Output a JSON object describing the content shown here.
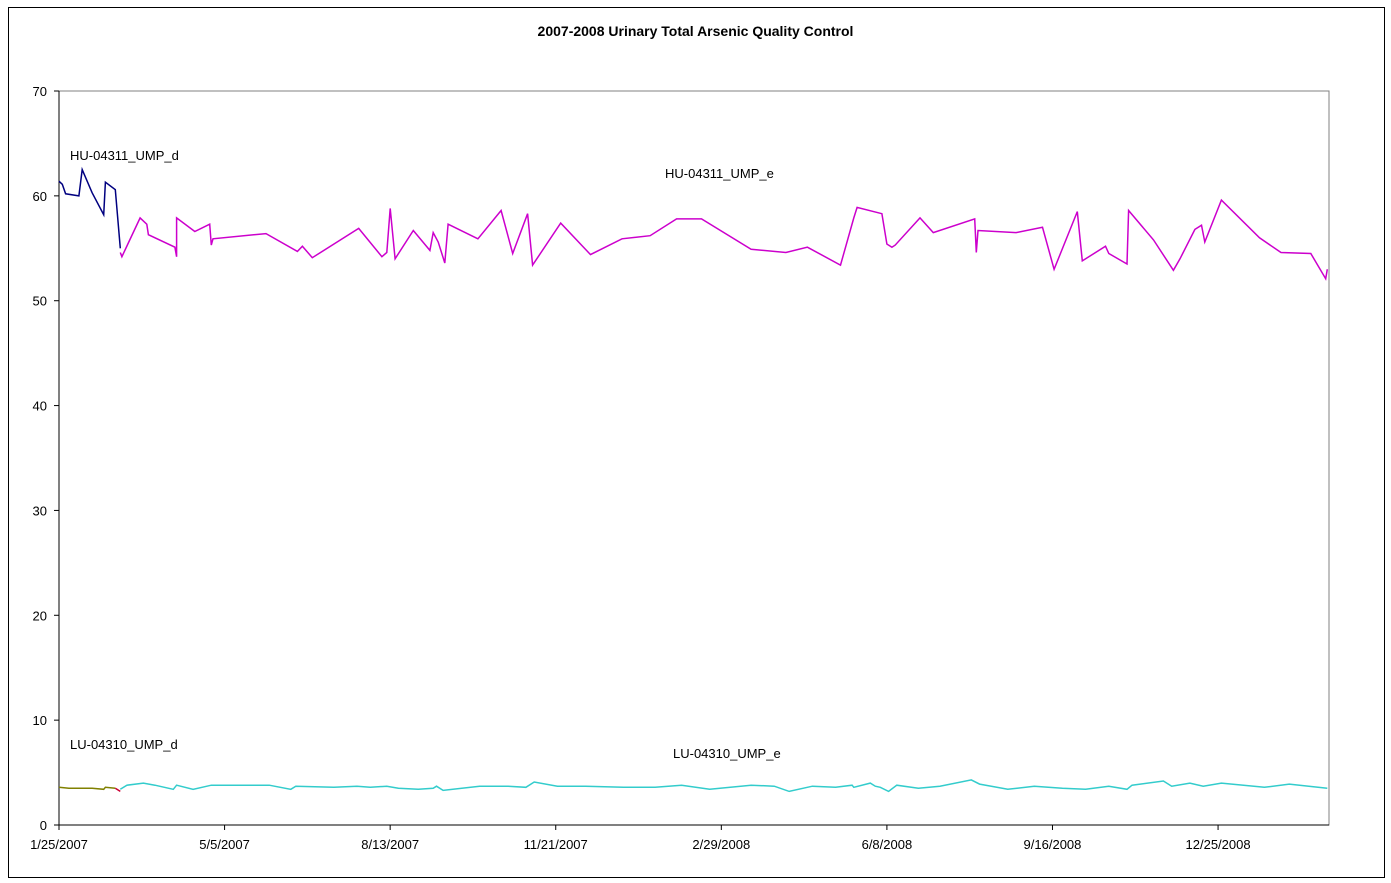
{
  "chart_data": {
    "type": "line",
    "title": "2007-2008 Urinary Total Arsenic Quality Control",
    "xlabel": "",
    "ylabel": "",
    "ylim": [
      0,
      70
    ],
    "yticks": [
      0,
      10,
      20,
      30,
      40,
      50,
      60,
      70
    ],
    "xlim": [
      "1/25/2007",
      "3/2/2009"
    ],
    "xticks": [
      "1/25/2007",
      "5/5/2007",
      "8/13/2007",
      "11/21/2007",
      "2/29/2008",
      "6/8/2008",
      "9/16/2008",
      "12/25/2008"
    ],
    "grid": false,
    "legend": "none",
    "series": [
      {
        "name": "HU-04311_UMP_d",
        "color": "#000080",
        "x": [
          "1/25/2007",
          "1/27/2007",
          "1/29/2007",
          "2/6/2007",
          "2/8/2007",
          "2/14/2007",
          "2/21/2007",
          "2/22/2007",
          "2/28/2007",
          "3/3/2007"
        ],
        "y": [
          61.4,
          61.1,
          60.2,
          60.0,
          62.5,
          60.3,
          58.2,
          61.3,
          60.6,
          55.0
        ]
      },
      {
        "name": "HU-04311_UMP_e",
        "color": "#CC00CC",
        "x": [
          "3/3/2007",
          "3/4/2007",
          "3/15/2007",
          "3/19/2007",
          "3/20/2007",
          "4/5/2007",
          "4/6/2007",
          "4/6/2007",
          "4/17/2007",
          "4/26/2007",
          "4/27/2007",
          "4/28/2007",
          "5/30/2007",
          "6/18/2007",
          "6/21/2007",
          "6/27/2007",
          "7/25/2007",
          "8/8/2007",
          "8/11/2007",
          "8/13/2007",
          "8/16/2007",
          "8/27/2007",
          "9/6/2007",
          "9/8/2007",
          "9/11/2007",
          "9/15/2007",
          "9/17/2007",
          "10/5/2007",
          "10/19/2007",
          "10/26/2007",
          "11/4/2007",
          "11/7/2007",
          "11/24/2007",
          "12/12/2007",
          "12/31/2007",
          "1/17/2008",
          "2/2/2008",
          "2/17/2008",
          "3/18/2008",
          "4/8/2008",
          "4/21/2008",
          "5/11/2008",
          "5/19/2008",
          "5/21/2008",
          "6/5/2008",
          "6/8/2008",
          "6/11/2008",
          "6/13/2008",
          "6/28/2008",
          "7/6/2008",
          "7/31/2008",
          "8/1/2008",
          "8/2/2008",
          "8/25/2008",
          "9/10/2008",
          "9/17/2008",
          "10/1/2008",
          "10/4/2008",
          "10/18/2008",
          "10/20/2008",
          "10/31/2008",
          "11/1/2008",
          "11/16/2008",
          "11/28/2008",
          "12/2/2008",
          "12/11/2008",
          "12/15/2008",
          "12/17/2008",
          "12/27/2008",
          "1/19/2009",
          "2/1/2009",
          "2/19/2009",
          "2/28/2009",
          "3/1/2009"
        ],
        "y": [
          54.6,
          54.2,
          57.9,
          57.3,
          56.3,
          55.1,
          54.2,
          57.9,
          56.6,
          57.3,
          55.3,
          55.9,
          56.4,
          54.7,
          55.2,
          54.1,
          56.9,
          54.2,
          54.6,
          58.8,
          54.0,
          56.7,
          54.8,
          56.5,
          55.6,
          53.6,
          57.3,
          55.9,
          58.6,
          54.5,
          58.3,
          53.4,
          57.4,
          54.4,
          55.9,
          56.2,
          57.8,
          57.8,
          54.9,
          54.6,
          55.1,
          53.4,
          57.9,
          58.9,
          58.3,
          55.4,
          55.1,
          55.3,
          57.9,
          56.5,
          57.8,
          54.6,
          56.7,
          56.5,
          57.0,
          53.0,
          58.5,
          53.8,
          55.2,
          54.5,
          53.5,
          58.6,
          55.8,
          52.9,
          54.0,
          56.8,
          57.2,
          55.6,
          59.6,
          56.0,
          54.6,
          54.5,
          52.1,
          53.0
        ]
      },
      {
        "name": "LU-04310_UMP_d",
        "color": "#808000",
        "x": [
          "1/25/2007",
          "1/31/2007",
          "2/14/2007",
          "2/21/2007",
          "2/22/2007",
          "2/28/2007"
        ],
        "y": [
          3.6,
          3.5,
          3.5,
          3.4,
          3.6,
          3.5
        ]
      },
      {
        "name": "",
        "color": "#CC0033",
        "x": [
          "2/28/2007",
          "3/3/2007"
        ],
        "y": [
          3.5,
          3.2
        ]
      },
      {
        "name": "LU-04310_UMP_e",
        "color": "#33CCCC",
        "x": [
          "3/3/2007",
          "3/7/2007",
          "3/17/2007",
          "3/24/2007",
          "4/4/2007",
          "4/6/2007",
          "4/16/2007",
          "4/27/2007",
          "5/2/2007",
          "6/1/2007",
          "6/14/2007",
          "6/17/2007",
          "7/10/2007",
          "7/24/2007",
          "8/1/2007",
          "8/11/2007",
          "8/18/2007",
          "8/30/2007",
          "9/8/2007",
          "9/10/2007",
          "9/14/2007",
          "10/6/2007",
          "10/23/2007",
          "11/3/2007",
          "11/8/2007",
          "11/22/2007",
          "12/9/2007",
          "1/1/2008",
          "1/20/2008",
          "2/5/2008",
          "2/22/2008",
          "3/18/2008",
          "4/1/2008",
          "4/10/2008",
          "4/24/2008",
          "5/8/2008",
          "5/18/2008",
          "5/19/2008",
          "5/29/2008",
          "6/1/2008",
          "6/4/2008",
          "6/9/2008",
          "6/14/2008",
          "6/27/2008",
          "7/10/2008",
          "7/29/2008",
          "8/3/2008",
          "8/20/2008",
          "9/5/2008",
          "9/22/2008",
          "10/6/2008",
          "10/20/2008",
          "10/31/2008",
          "11/3/2008",
          "11/22/2008",
          "11/27/2008",
          "12/8/2008",
          "12/16/2008",
          "12/27/2008",
          "1/22/2009",
          "2/6/2009",
          "3/1/2009"
        ],
        "y": [
          3.4,
          3.8,
          4.0,
          3.8,
          3.4,
          3.8,
          3.4,
          3.8,
          3.8,
          3.8,
          3.4,
          3.7,
          3.6,
          3.7,
          3.6,
          3.7,
          3.5,
          3.4,
          3.5,
          3.7,
          3.3,
          3.7,
          3.7,
          3.6,
          4.1,
          3.7,
          3.7,
          3.6,
          3.6,
          3.8,
          3.4,
          3.8,
          3.7,
          3.2,
          3.7,
          3.6,
          3.8,
          3.6,
          4.0,
          3.7,
          3.6,
          3.2,
          3.8,
          3.5,
          3.7,
          4.3,
          3.9,
          3.4,
          3.7,
          3.5,
          3.4,
          3.7,
          3.4,
          3.8,
          4.2,
          3.7,
          4.0,
          3.7,
          4.0,
          3.6,
          3.9,
          3.5
        ]
      }
    ],
    "annotations": [
      {
        "text": "HU-04311_UMP_d",
        "series": "HU-04311_UMP_d"
      },
      {
        "text": "HU-04311_UMP_e",
        "series": "HU-04311_UMP_e"
      },
      {
        "text": "LU-04310_UMP_d",
        "series": "LU-04310_UMP_d"
      },
      {
        "text": "LU-04310_UMP_e",
        "series": "LU-04310_UMP_e"
      }
    ]
  }
}
